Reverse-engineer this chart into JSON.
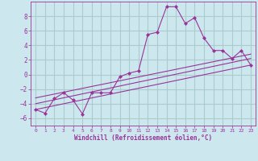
{
  "xlabel": "Windchill (Refroidissement éolien,°C)",
  "background_color": "#cce8ee",
  "grid_color": "#aacccc",
  "line_color": "#993399",
  "xlim": [
    -0.5,
    23.5
  ],
  "ylim": [
    -7.0,
    10.0
  ],
  "xticks": [
    0,
    1,
    2,
    3,
    4,
    5,
    6,
    7,
    8,
    9,
    10,
    11,
    12,
    13,
    14,
    15,
    16,
    17,
    18,
    19,
    20,
    21,
    22,
    23
  ],
  "yticks": [
    -6,
    -4,
    -2,
    0,
    2,
    4,
    6,
    8
  ],
  "series": [
    [
      0,
      -4.8
    ],
    [
      1,
      -5.3
    ],
    [
      2,
      -3.3
    ],
    [
      3,
      -2.5
    ],
    [
      4,
      -3.5
    ],
    [
      5,
      -5.4
    ],
    [
      6,
      -2.5
    ],
    [
      7,
      -2.5
    ],
    [
      8,
      -2.5
    ],
    [
      9,
      -0.3
    ],
    [
      10,
      0.2
    ],
    [
      11,
      0.5
    ],
    [
      12,
      5.5
    ],
    [
      13,
      5.8
    ],
    [
      14,
      9.3
    ],
    [
      15,
      9.3
    ],
    [
      16,
      7.0
    ],
    [
      17,
      7.8
    ],
    [
      18,
      5.0
    ],
    [
      19,
      3.3
    ],
    [
      20,
      3.3
    ],
    [
      21,
      2.2
    ],
    [
      22,
      3.3
    ],
    [
      23,
      1.3
    ]
  ],
  "linear_series1": [
    [
      0,
      -4.8
    ],
    [
      23,
      1.3
    ]
  ],
  "linear_series2": [
    [
      0,
      -4.0
    ],
    [
      23,
      2.2
    ]
  ],
  "linear_series3": [
    [
      0,
      -3.2
    ],
    [
      23,
      2.8
    ]
  ]
}
